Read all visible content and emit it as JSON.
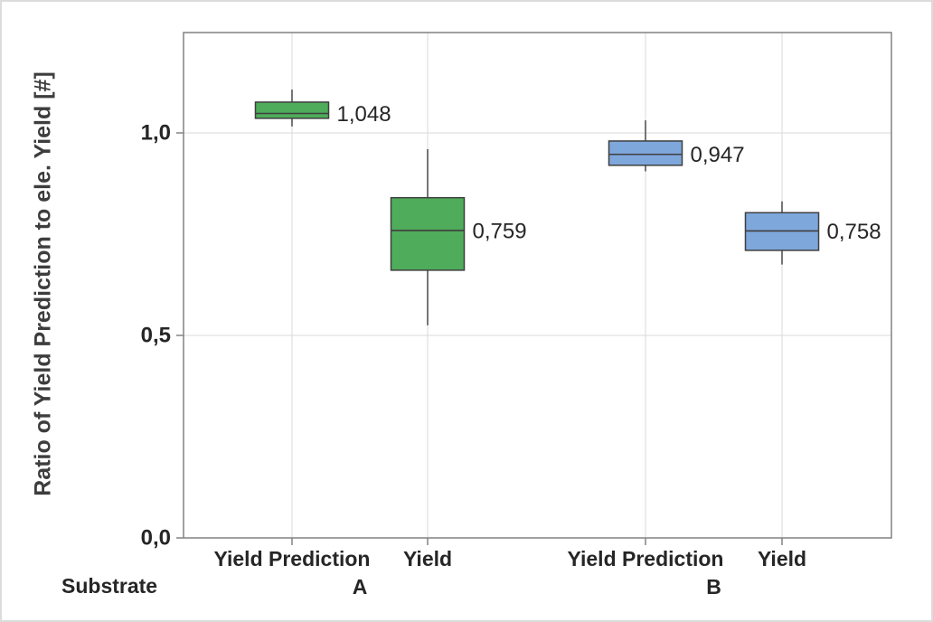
{
  "window": {
    "background": "#ffffff",
    "border_color": "#dcdcdc"
  },
  "colors": {
    "green_fill": "#4fac5b",
    "blue_fill": "#7ea7db",
    "box_border": "#3f3f3f",
    "median_line": "#3f3f3f",
    "whisker": "#3f3f3f",
    "gridline": "#e0e0e0",
    "frame": "#828282",
    "tick": "#828282",
    "tick_label_text": "#262626",
    "category_label_text": "#262626",
    "data_label_text": "#262626",
    "axis_title_text": "#3d3d3d"
  },
  "chart_data": {
    "type": "boxplot",
    "title": "",
    "ylabel": "Ratio of Yield Prediction to ele. Yield [#]",
    "xlabel": "Substrate",
    "ylim": [
      0.0,
      1.25
    ],
    "grid": true,
    "legend_position": "none",
    "decimal_separator": ",",
    "yticks": [
      {
        "value": 0.0,
        "label": "0,0"
      },
      {
        "value": 0.5,
        "label": "0,5"
      },
      {
        "value": 1.0,
        "label": "1,0"
      }
    ],
    "groups": [
      {
        "name": "A",
        "fill": "#4fac5b",
        "boxes": [
          {
            "category": "Yield Prediction",
            "whisker_low": 1.016,
            "q1": 1.036,
            "median": 1.048,
            "q3": 1.076,
            "whisker_high": 1.107,
            "median_label": "1,048"
          },
          {
            "category": "Yield",
            "whisker_low": 0.525,
            "q1": 0.661,
            "median": 0.759,
            "q3": 0.84,
            "whisker_high": 0.96,
            "median_label": "0,759"
          }
        ]
      },
      {
        "name": "B",
        "fill": "#7ea7db",
        "boxes": [
          {
            "category": "Yield Prediction",
            "whisker_low": 0.905,
            "q1": 0.92,
            "median": 0.947,
            "q3": 0.98,
            "whisker_high": 1.031,
            "median_label": "0,947"
          },
          {
            "category": "Yield",
            "whisker_low": 0.675,
            "q1": 0.71,
            "median": 0.758,
            "q3": 0.803,
            "whisker_high": 0.831,
            "median_label": "0,758"
          }
        ]
      }
    ]
  }
}
